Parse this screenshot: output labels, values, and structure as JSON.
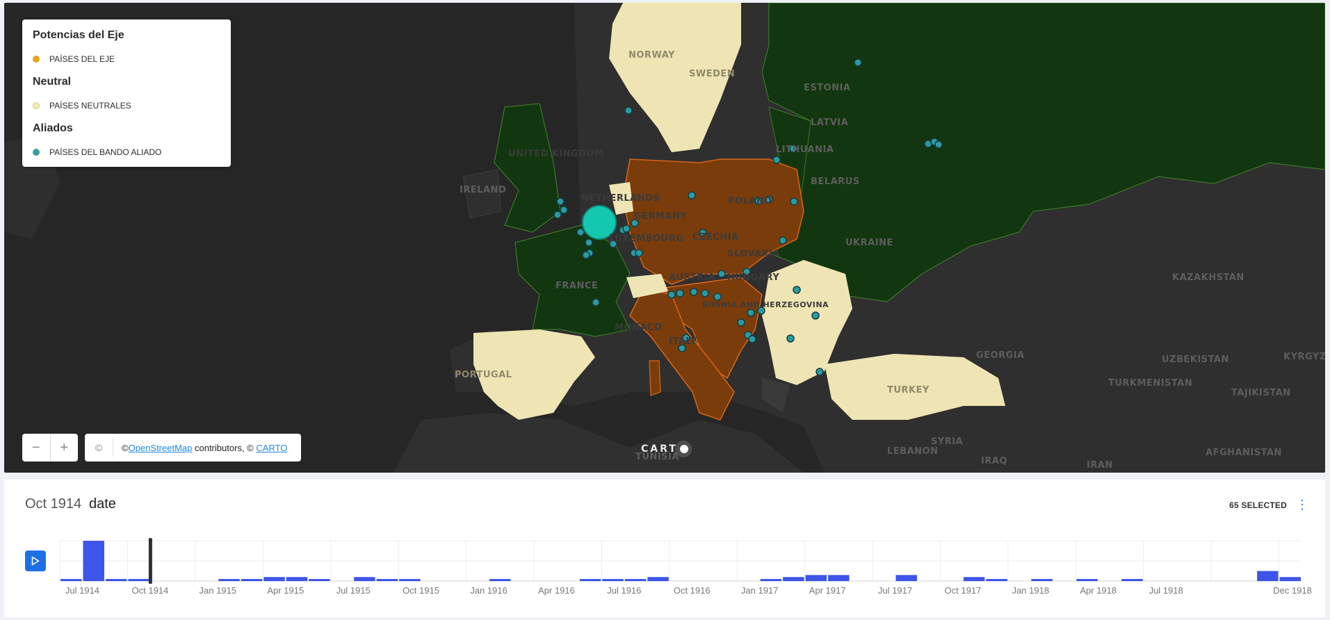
{
  "legend": {
    "groups": [
      {
        "title": "Potencias del Eje",
        "item": "PAÍSES DEL EJE",
        "color": "#e8a317"
      },
      {
        "title": "Neutral",
        "item": "PAÍSES NEUTRALES",
        "color": "#f3ecb4"
      },
      {
        "title": "Aliados",
        "item": "PAÍSES DEL BANDO ALIADO",
        "color": "#3a9ea6"
      }
    ]
  },
  "map": {
    "labels": [
      "UNITED KINGDOM",
      "IRELAND",
      "NETHERLANDS",
      "GERMANY",
      "LUXEMBOURG",
      "FRANCE",
      "POLAND",
      "CZECHIA",
      "SLOVAKIA",
      "AUSTRIA",
      "HUNGARY",
      "BELARUS",
      "UKRAINE",
      "LATVIA",
      "ESTONIA",
      "LITHUANIA",
      "MONACO",
      "ITALY",
      "PORTUGAL",
      "TURKEY",
      "GEORGIA",
      "KAZAKHSTAN",
      "UZBEKISTAN",
      "TURKMENISTAN",
      "TAJIKISTAN",
      "KYRGYZSTAN",
      "AFGHANISTAN",
      "IRAN",
      "IRAQ",
      "SYRIA",
      "LEBANON",
      "TUNISIA",
      "BOSNIA AND HERZEGOVINA",
      "NORWAY",
      "SWEDEN"
    ],
    "colors": {
      "axis": "#7a3c0a",
      "axis_border": "#d9661b",
      "neutral": "#efe5b4",
      "allied": "#123a12",
      "allied_border": "#3c7a2a",
      "land": "#323232",
      "sea": "#262626",
      "marker": "#2a9aa3",
      "highlight": "#14c8b0"
    }
  },
  "controls": {
    "zoom_out": "−",
    "zoom_in": "+",
    "copyright_icon": "©",
    "attribution_prefix": "© ",
    "osm_link": "OpenStreetMap",
    "attribution_mid": " contributors, © ",
    "carto_link": "CARTO",
    "carto_logo": "CART"
  },
  "timeline": {
    "current_date": "Oct 1914",
    "field": "date",
    "selected": "65 SELECTED",
    "menu_icon": "⋮",
    "play_icon": "play-icon",
    "bar_color": "#3d55e8",
    "cursor_month": "1914-09"
  },
  "chart_data": {
    "type": "bar",
    "title": "",
    "xlabel": "",
    "ylabel": "",
    "x_ticks": [
      "Jul 1914",
      "Oct 1914",
      "Jan 1915",
      "Apr 1915",
      "Jul 1915",
      "Oct 1915",
      "Jan 1916",
      "Apr 1916",
      "Jul 1916",
      "Oct 1916",
      "Jan 1917",
      "Apr 1917",
      "Jul 1917",
      "Oct 1917",
      "Jan 1918",
      "Apr 1918",
      "Jul 1918",
      "Dec 1918"
    ],
    "categories": [
      "1914-06",
      "1914-07",
      "1914-08",
      "1914-09",
      "1914-10",
      "1914-11",
      "1914-12",
      "1915-01",
      "1915-02",
      "1915-03",
      "1915-04",
      "1915-05",
      "1915-06",
      "1915-07",
      "1915-08",
      "1915-09",
      "1915-10",
      "1915-11",
      "1915-12",
      "1916-01",
      "1916-02",
      "1916-03",
      "1916-04",
      "1916-05",
      "1916-06",
      "1916-07",
      "1916-08",
      "1916-09",
      "1916-10",
      "1916-11",
      "1916-12",
      "1917-01",
      "1917-02",
      "1917-03",
      "1917-04",
      "1917-05",
      "1917-06",
      "1917-07",
      "1917-08",
      "1917-09",
      "1917-10",
      "1917-11",
      "1917-12",
      "1918-01",
      "1918-02",
      "1918-03",
      "1918-04",
      "1918-05",
      "1918-06",
      "1918-07",
      "1918-08",
      "1918-09",
      "1918-10",
      "1918-11",
      "1918-12"
    ],
    "values": [
      1,
      20,
      1,
      1,
      0,
      0,
      0,
      1,
      1,
      2,
      2,
      1,
      0,
      2,
      1,
      1,
      0,
      0,
      0,
      1,
      0,
      0,
      0,
      1,
      1,
      1,
      2,
      0,
      0,
      0,
      0,
      1,
      2,
      3,
      3,
      0,
      0,
      3,
      0,
      0,
      2,
      1,
      0,
      1,
      0,
      1,
      0,
      1,
      0,
      0,
      0,
      0,
      0,
      5,
      2
    ],
    "ylim": [
      0,
      20
    ]
  }
}
